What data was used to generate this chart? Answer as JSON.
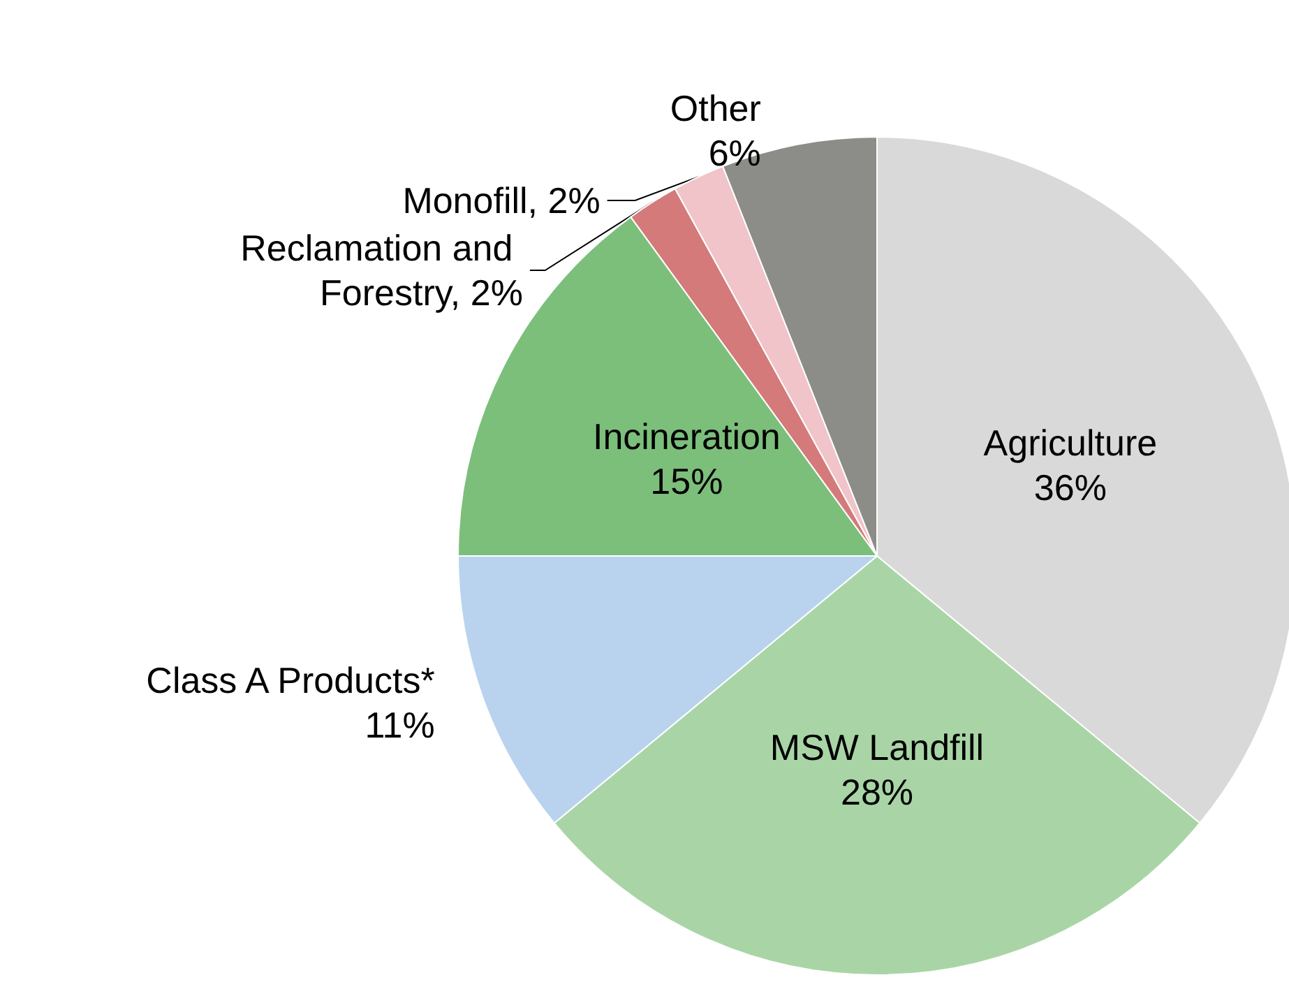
{
  "chart_data": {
    "type": "pie",
    "categories": [
      "Agriculture",
      "MSW Landfill",
      "Class A Products*",
      "Incineration",
      "Reclamation and Forestry",
      "Monofill",
      "Other"
    ],
    "values": [
      36,
      28,
      11,
      15,
      2,
      2,
      6
    ],
    "value_labels": [
      "36%",
      "28%",
      "11%",
      "15%",
      "2%",
      "2%",
      "6%"
    ],
    "colors": [
      "#d9d9d9",
      "#a9d5a6",
      "#b9d3ee",
      "#7cbf7b",
      "#d47a7a",
      "#f0c4c9",
      "#8c8c88"
    ]
  }
}
